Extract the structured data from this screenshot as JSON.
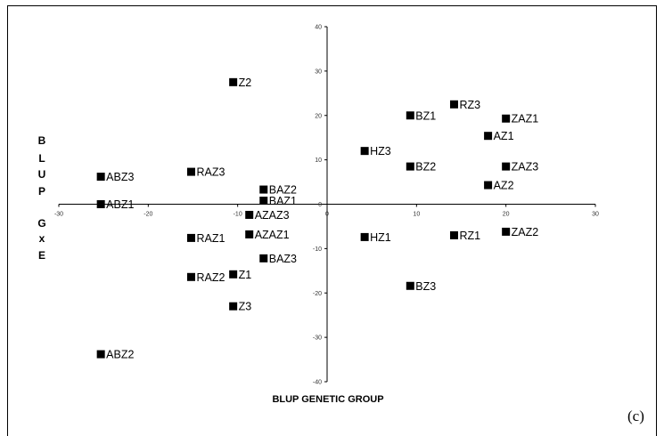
{
  "chart_data": {
    "type": "scatter",
    "xlabel": "BLUP GENETIC GROUP",
    "ylabel": "BLUP GxE",
    "xlim": [
      -30,
      30
    ],
    "ylim": [
      -40,
      40
    ],
    "x_ticks": [
      -30,
      -20,
      -10,
      0,
      10,
      20,
      30
    ],
    "y_ticks": [
      -40,
      -30,
      -20,
      -10,
      0,
      10,
      20,
      30,
      40
    ],
    "grid": false,
    "panel_tag": "(c)",
    "points": [
      {
        "label": "Z2",
        "x": -10.5,
        "y": 27.5
      },
      {
        "label": "RZ3",
        "x": 14.2,
        "y": 22.5
      },
      {
        "label": "BZ1",
        "x": 9.3,
        "y": 20.0
      },
      {
        "label": "ZAZ1",
        "x": 20.0,
        "y": 19.3
      },
      {
        "label": "AZ1",
        "x": 18.0,
        "y": 15.4
      },
      {
        "label": "HZ3",
        "x": 4.2,
        "y": 12.0
      },
      {
        "label": "BZ2",
        "x": 9.3,
        "y": 8.5
      },
      {
        "label": "ZAZ3",
        "x": 20.0,
        "y": 8.5
      },
      {
        "label": "AZ2",
        "x": 18.0,
        "y": 4.3
      },
      {
        "label": "RAZ3",
        "x": 15.2,
        "y": 7.3,
        "neg_x": true
      },
      {
        "label": "ABZ3",
        "x": -25.3,
        "y": 6.2
      },
      {
        "label": "BAZ2",
        "x": -7.1,
        "y": 3.3
      },
      {
        "label": "BAZ1",
        "x": -7.1,
        "y": 0.8
      },
      {
        "label": "ABZ1",
        "x": -25.3,
        "y": 0.0
      },
      {
        "label": "AZAZ3",
        "x": -8.7,
        "y": -2.4
      },
      {
        "label": "AZAZ1",
        "x": -8.7,
        "y": -6.8
      },
      {
        "label": "RAZ1",
        "x": -15.2,
        "y": -7.6
      },
      {
        "label": "HZ1",
        "x": 4.2,
        "y": -7.4
      },
      {
        "label": "RZ1",
        "x": 14.2,
        "y": -7.0
      },
      {
        "label": "ZAZ2",
        "x": 20.0,
        "y": -6.2
      },
      {
        "label": "BAZ3",
        "x": -7.1,
        "y": -12.2
      },
      {
        "label": "Z1",
        "x": -10.5,
        "y": -15.8
      },
      {
        "label": "RAZ2",
        "x": -15.2,
        "y": -16.4
      },
      {
        "label": "BZ3",
        "x": 9.3,
        "y": -18.4
      },
      {
        "label": "Z3",
        "x": -10.5,
        "y": -23.0
      },
      {
        "label": "ABZ2",
        "x": -25.3,
        "y": -33.8
      }
    ]
  }
}
